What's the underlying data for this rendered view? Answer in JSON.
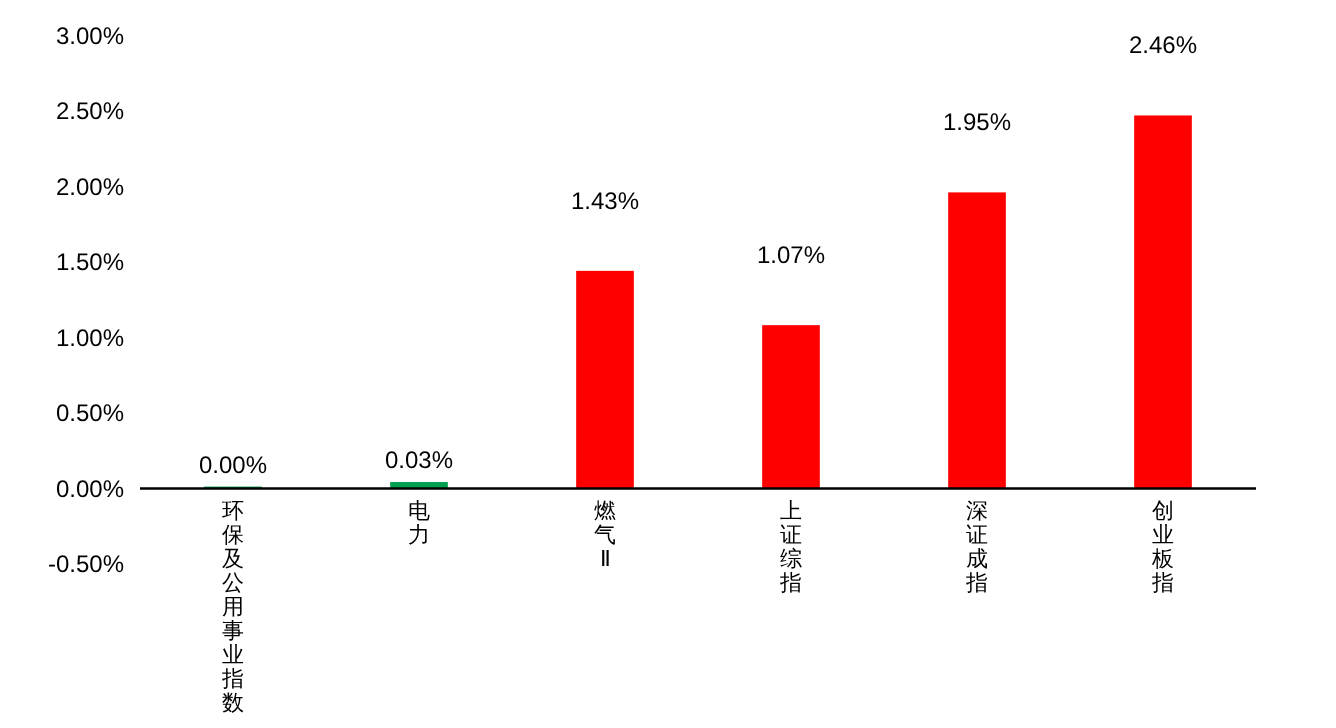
{
  "chart_data": {
    "type": "bar",
    "categories": [
      "环保及公用事业指数",
      "电力",
      "燃气Ⅱ",
      "上证综指",
      "深证成指",
      "创业板指"
    ],
    "values": [
      0.0,
      0.03,
      1.43,
      1.07,
      1.95,
      2.46
    ],
    "colors": [
      "#00a050",
      "#00a050",
      "#ff0000",
      "#ff0000",
      "#ff0000",
      "#ff0000"
    ],
    "value_labels": [
      "0.00%",
      "0.03%",
      "1.43%",
      "1.07%",
      "1.95%",
      "2.46%"
    ],
    "ylim": [
      -0.5,
      3.0
    ],
    "yticks": [
      {
        "value": -0.5,
        "label": "-0.50%"
      },
      {
        "value": 0,
        "label": "0.00%"
      },
      {
        "value": 0.5,
        "label": "0.50%"
      },
      {
        "value": 1.0,
        "label": "1.00%"
      },
      {
        "value": 1.5,
        "label": "1.50%"
      },
      {
        "value": 2.0,
        "label": "2.00%"
      },
      {
        "value": 2.5,
        "label": "2.50%"
      },
      {
        "value": 3.0,
        "label": "3.00%"
      }
    ],
    "grid": false
  }
}
